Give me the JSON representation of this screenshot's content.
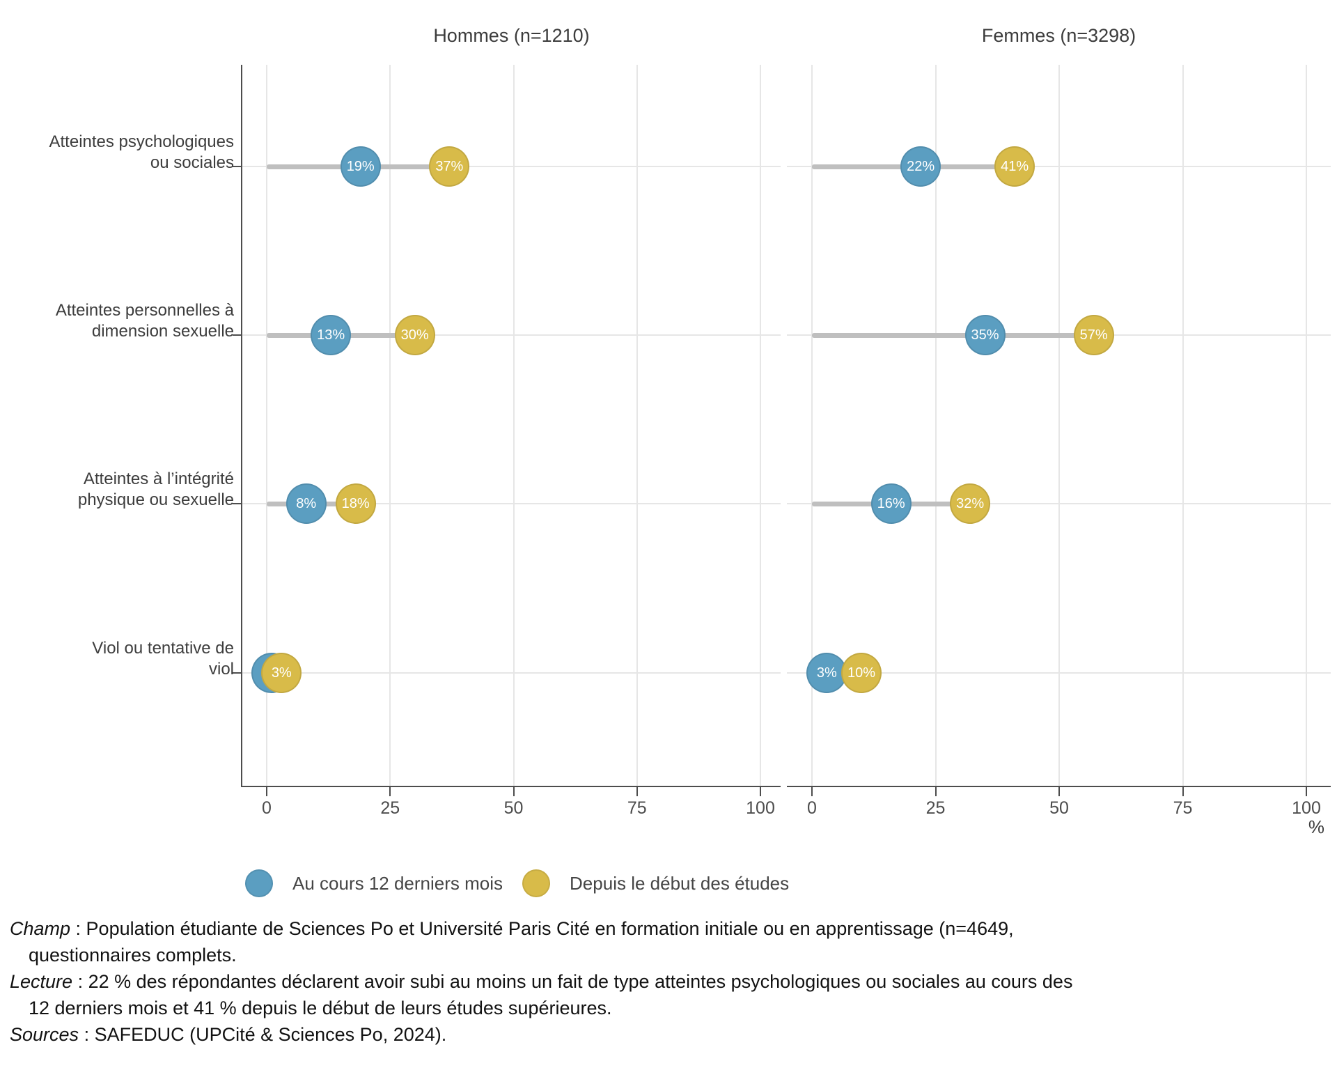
{
  "chart_data": {
    "type": "dumbbell",
    "orientation": "horizontal",
    "unit_label": "%",
    "xlim": [
      0,
      100
    ],
    "x_ticks": [
      0,
      25,
      50,
      75,
      100
    ],
    "grid": true,
    "legend_position": "bottom",
    "colors": {
      "grid": "#E6E6E6",
      "axis": "#4D4D4D",
      "connector": "#BFBFBF",
      "dot_label": "#FFFFFF"
    },
    "series": [
      {
        "name": "Au cours 12 derniers mois",
        "color": "#5B9EC1"
      },
      {
        "name": "Depuis le début des études",
        "color": "#D8BB49"
      }
    ],
    "categories": [
      "Atteintes psychologiques\nou sociales",
      "Atteintes personnelles à\ndimension sexuelle",
      "Atteintes à l’intégrité\nphysique ou sexuelle",
      "Viol ou tentative de\nviol"
    ],
    "panels": [
      {
        "title": "Hommes (n=1210)",
        "values": [
          [
            19,
            37
          ],
          [
            13,
            30
          ],
          [
            8,
            18
          ],
          [
            1,
            3
          ]
        ],
        "labels": [
          [
            "19%",
            "37%"
          ],
          [
            "13%",
            "30%"
          ],
          [
            "8%",
            "18%"
          ],
          [
            "",
            "3%"
          ]
        ]
      },
      {
        "title": "Femmes (n=3298)",
        "values": [
          [
            22,
            41
          ],
          [
            35,
            57
          ],
          [
            16,
            32
          ],
          [
            3,
            10
          ]
        ],
        "labels": [
          [
            "22%",
            "41%"
          ],
          [
            "35%",
            "57%"
          ],
          [
            "16%",
            "32%"
          ],
          [
            "3%",
            "10%"
          ]
        ]
      }
    ]
  },
  "footer": {
    "rows": [
      {
        "term": "Champ",
        "text": " : Population étudiante de Sciences Po et Université Paris Cité en formation initiale ou en apprentissage (n=4649,",
        "indent": false
      },
      {
        "term": "",
        "text": "questionnaires complets.",
        "indent": true
      },
      {
        "term": "Lecture",
        "text": " : 22 % des répondantes déclarent avoir subi au moins un fait de type atteintes psychologiques ou sociales au cours des",
        "indent": false
      },
      {
        "term": "",
        "text": "12 derniers mois et 41 % depuis le début de leurs études supérieures.",
        "indent": true
      },
      {
        "term": "Sources",
        "text": " : SAFEDUC (UPCité & Sciences Po, 2024).",
        "indent": false
      }
    ]
  }
}
